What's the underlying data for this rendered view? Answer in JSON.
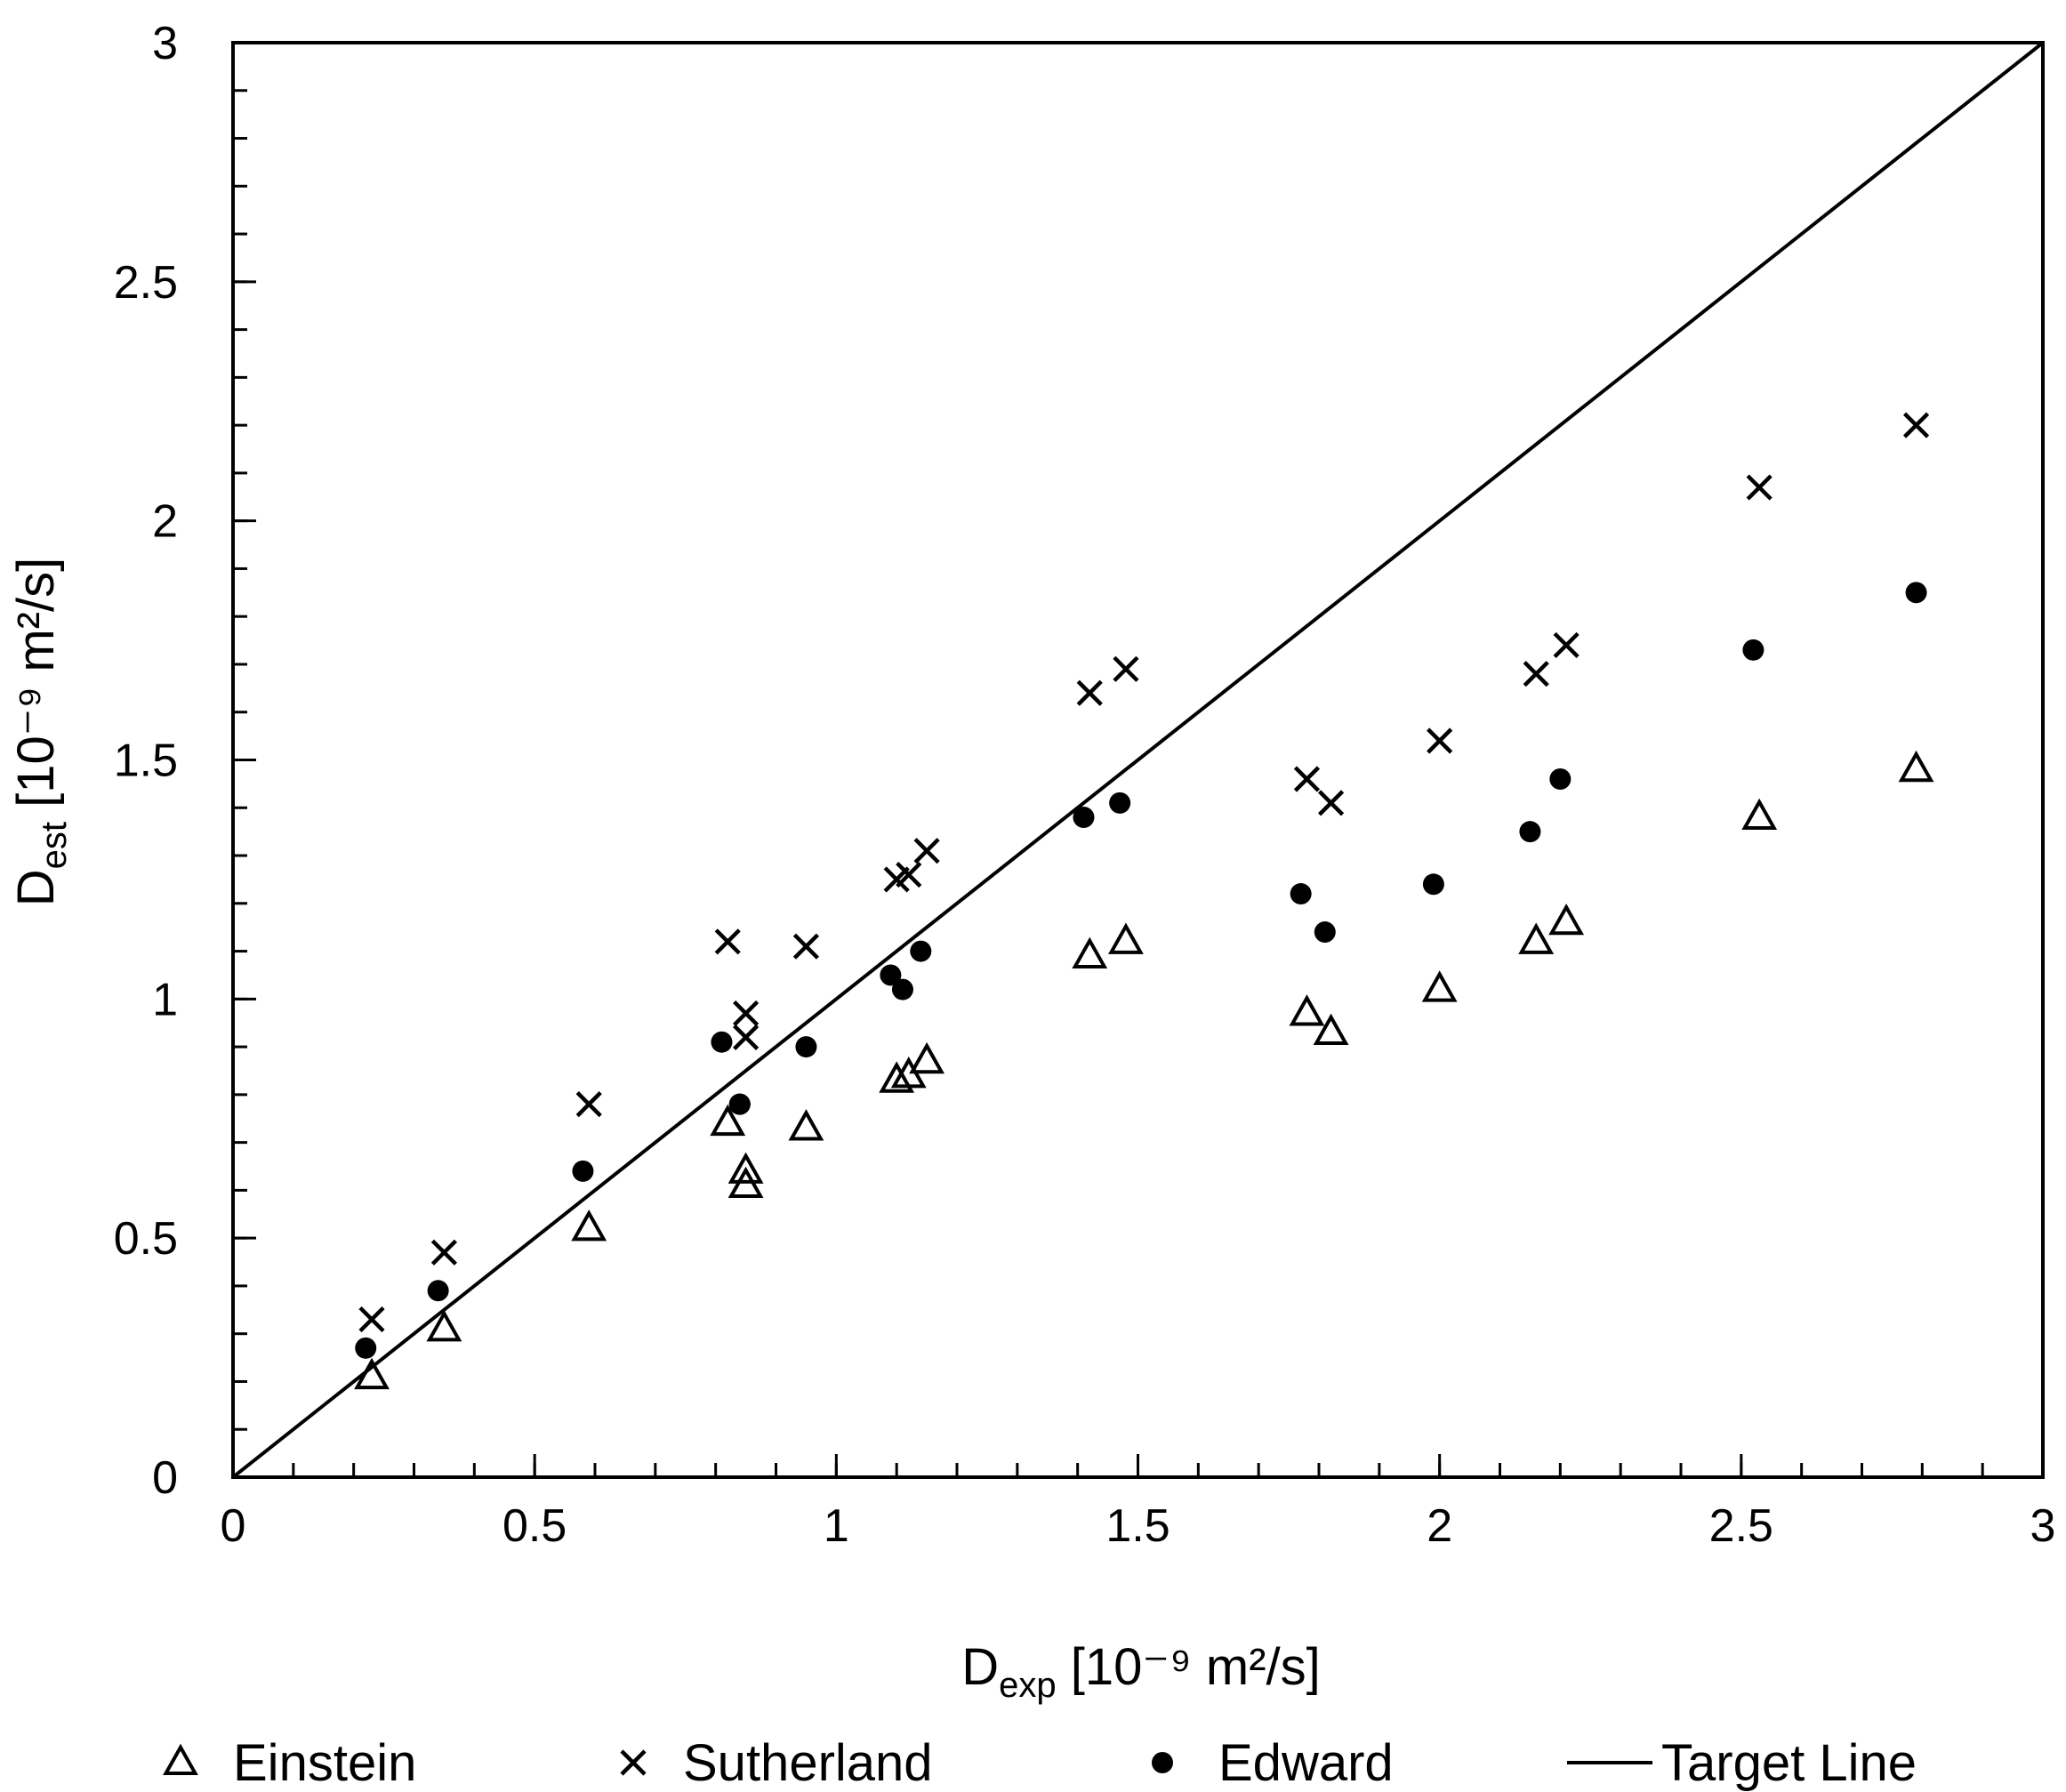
{
  "chart_data": {
    "type": "scatter",
    "title": "",
    "xlabel": {
      "main": "D",
      "sub": "exp",
      "rest": " [10⁻⁹ m²/s]"
    },
    "ylabel": {
      "main": "D",
      "sub": "est",
      "rest": " [10⁻⁹ m²/s]"
    },
    "xlim": [
      0,
      3
    ],
    "ylim": [
      0,
      3
    ],
    "x_ticks": [
      0,
      0.5,
      1,
      1.5,
      2,
      2.5,
      3
    ],
    "y_ticks": [
      0,
      0.5,
      1,
      1.5,
      2,
      2.5,
      3
    ],
    "x_tick_labels": [
      "0",
      "0.5",
      "1",
      "1.5",
      "2",
      "2.5",
      "3"
    ],
    "y_tick_labels": [
      "0",
      "0.5",
      "1",
      "1.5",
      "2",
      "2.5",
      "3"
    ],
    "minor_tick_step": 0.1,
    "grid": false,
    "legend_position": "bottom",
    "series": [
      {
        "name": "Einstein",
        "marker": "triangle-open",
        "x": [
          0.23,
          0.35,
          0.59,
          0.82,
          0.85,
          0.85,
          0.95,
          1.1,
          1.12,
          1.15,
          1.42,
          1.48,
          1.78,
          1.82,
          2.0,
          2.16,
          2.21,
          2.53,
          2.79
        ],
        "y": [
          0.21,
          0.31,
          0.52,
          0.74,
          0.64,
          0.61,
          0.73,
          0.83,
          0.84,
          0.87,
          1.09,
          1.12,
          0.97,
          0.93,
          1.02,
          1.12,
          1.16,
          1.38,
          1.48
        ]
      },
      {
        "name": "Sutherland",
        "marker": "cross",
        "x": [
          0.23,
          0.35,
          0.59,
          0.82,
          0.85,
          0.85,
          0.95,
          1.1,
          1.12,
          1.15,
          1.42,
          1.48,
          1.78,
          1.82,
          2.0,
          2.16,
          2.21,
          2.53,
          2.79
        ],
        "y": [
          0.33,
          0.47,
          0.78,
          1.12,
          0.97,
          0.92,
          1.11,
          1.25,
          1.26,
          1.31,
          1.64,
          1.69,
          1.46,
          1.41,
          1.54,
          1.68,
          1.74,
          2.07,
          2.2
        ]
      },
      {
        "name": "Edward",
        "marker": "circle-filled",
        "x": [
          0.22,
          0.34,
          0.58,
          0.81,
          0.84,
          0.84,
          0.95,
          1.09,
          1.11,
          1.14,
          1.41,
          1.47,
          1.77,
          1.81,
          1.99,
          2.15,
          2.2,
          2.52,
          2.79
        ],
        "y": [
          0.27,
          0.39,
          0.64,
          0.91,
          0.78,
          0.78,
          0.9,
          1.05,
          1.02,
          1.1,
          1.38,
          1.41,
          1.22,
          1.14,
          1.24,
          1.35,
          1.46,
          1.73,
          1.85
        ]
      },
      {
        "name": "Target Line",
        "marker": "line",
        "x": [
          0,
          3
        ],
        "y": [
          0,
          3
        ]
      }
    ]
  }
}
